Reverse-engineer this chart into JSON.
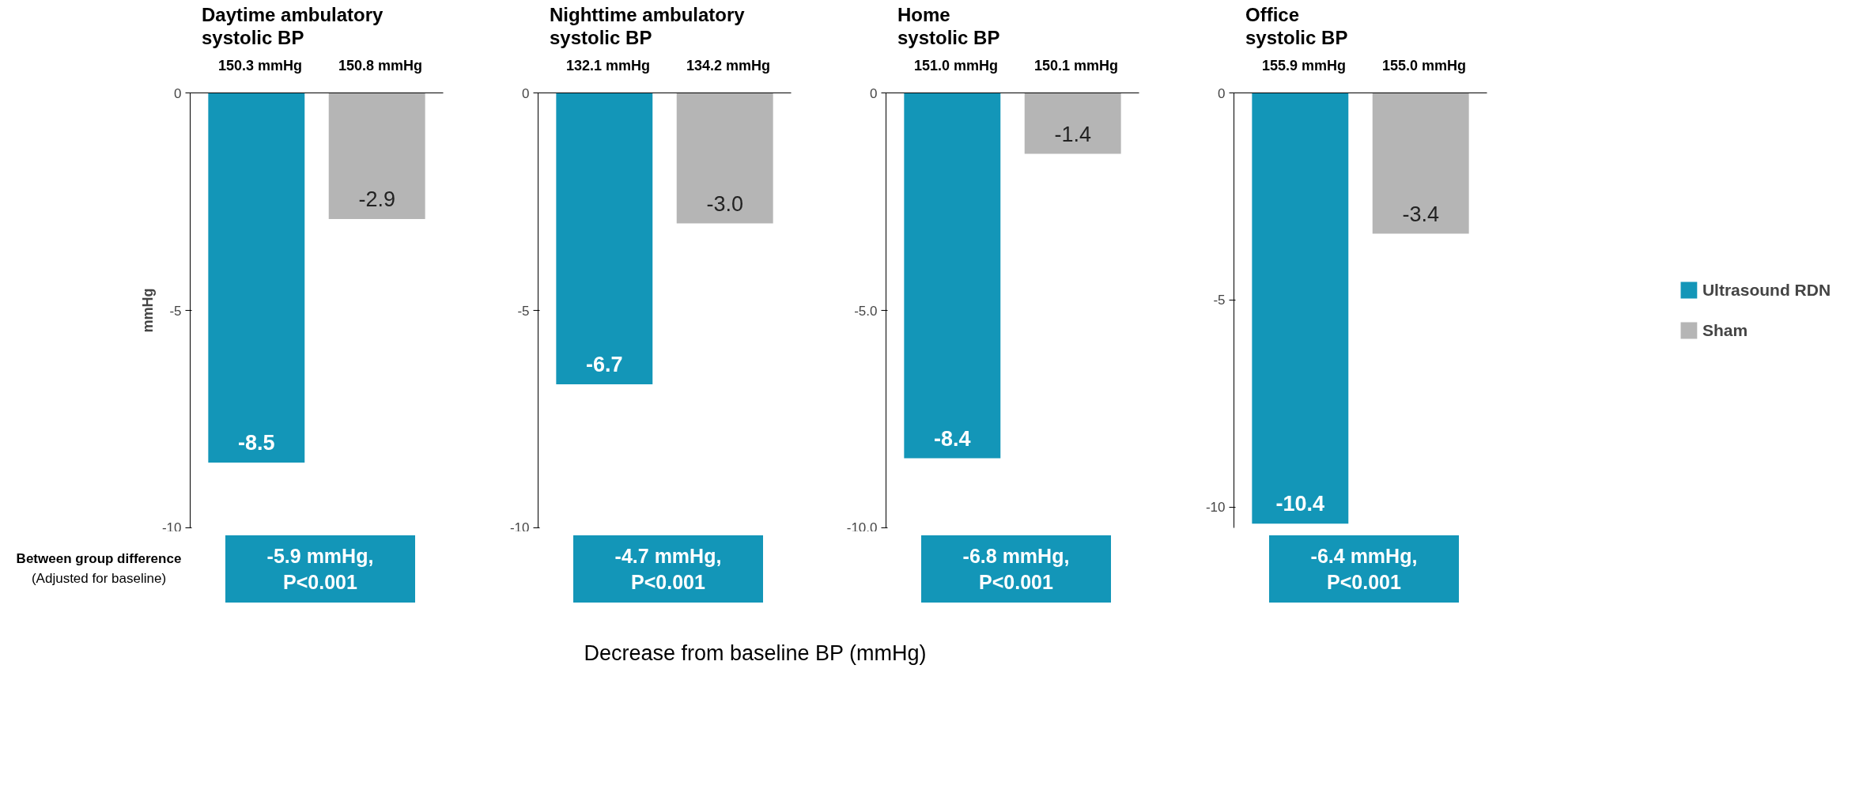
{
  "chart_data": [
    {
      "type": "bar",
      "title": "Daytime ambulatory\nsystolic BP",
      "ylabel": "mmHg",
      "categories": [
        null
      ],
      "series": [
        {
          "color": "#1396b8",
          "values": [
            -8.5
          ]
        },
        {
          "color": "#b5b5b5",
          "values": [
            -2.9
          ]
        }
      ],
      "ylim": [
        -10,
        0
      ],
      "yticks": [
        0,
        -5,
        -10
      ],
      "tick_labels": "y",
      "grid": false,
      "legend": false,
      "data_labels": true,
      "annotations": [
        "150.3 mmHg",
        "150.8 mmHg",
        "-5.9 mmHg,\nP<0.001",
        "Between group difference",
        "(Adjusted for baseline)",
        "Decrease from baseline BP (mmHg)"
      ]
    },
    {
      "type": "bar",
      "title": "Nighttime ambulatory\nsystolic BP",
      "categories": [
        null
      ],
      "series": [
        {
          "color": "#1396b8",
          "values": [
            -6.7
          ],
          "value_labels": [
            "-6.7"
          ]
        },
        {
          "color": "#b5b5b5",
          "values": [
            -3.0
          ],
          "value_labels": [
            "-3.0"
          ]
        }
      ],
      "ylim": [
        -10,
        0
      ],
      "yticks": [
        0,
        -5,
        -10
      ],
      "tick_labels": "y",
      "grid": false,
      "legend": false,
      "annotations": [
        "132.1 mmHg",
        "134.2 mmHg",
        "-4.7 mmHg,\nP<0.001"
      ]
    },
    {
      "type": "bar",
      "title": "Home\nsystolic BP",
      "categories": [
        null
      ],
      "series": [
        {
          "color": "#1396b8",
          "values": [
            -8.4
          ]
        },
        {
          "color": "#b5b5b5",
          "values": [
            -1.4
          ]
        }
      ],
      "ylim": [
        -10,
        0
      ],
      "yticks": [
        {
          "value": 0,
          "label": "0"
        },
        {
          "value": -5,
          "label": "-5.0"
        },
        {
          "value": -10,
          "label": "-10.0"
        }
      ],
      "tick_labels": "y",
      "grid": false,
      "legend": false,
      "data_labels": true,
      "annotations": [
        "151.0 mmHg",
        "150.1 mmHg",
        "-6.8 mmHg,\nP<0.001"
      ]
    },
    {
      "type": "bar",
      "title": "Office\nsystolic BP",
      "categories": [
        null
      ],
      "series": [
        {
          "name": "Ultrasound RDN",
          "color": "#1396b8",
          "values": [
            -10.4
          ]
        },
        {
          "name": "Sham",
          "color": "#b5b5b5",
          "values": [
            -3.4
          ]
        }
      ],
      "ylim": [
        -10.5,
        0
      ],
      "yticks": [
        0,
        -5,
        -10
      ],
      "tick_labels": "y",
      "grid": false,
      "legend": "right",
      "data_labels": true,
      "annotations": [
        "155.9 mmHg",
        "155.0 mmHg",
        "-6.4 mmHg,\nP<0.001"
      ]
    }
  ]
}
